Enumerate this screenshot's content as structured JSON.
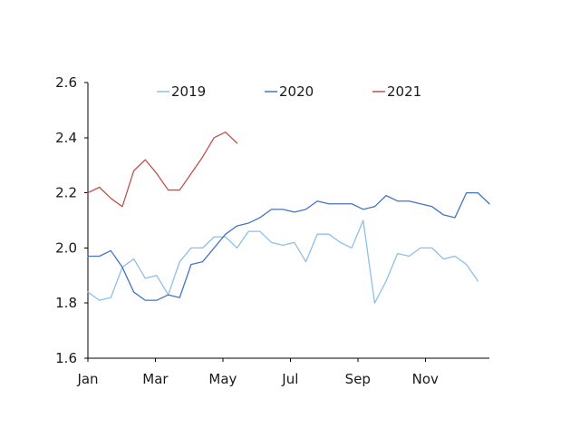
{
  "chart_data": {
    "type": "line",
    "title": "",
    "xlabel": "",
    "ylabel": "",
    "ylim": [
      1.6,
      2.6
    ],
    "yticks": [
      "1.6",
      "1.8",
      "2.0",
      "2.2",
      "2.4",
      "2.6"
    ],
    "x_tick_labels": [
      "Jan",
      "Mar",
      "May",
      "Jul",
      "Sep",
      "Nov"
    ],
    "x_tick_weeks": [
      0,
      10,
      20,
      30,
      40,
      50
    ],
    "x_range_weeks": [
      0,
      59.5
    ],
    "grid": false,
    "legend_position": "top",
    "series": [
      {
        "name": "2019",
        "color": "#8fbfe6",
        "values": [
          1.84,
          1.81,
          1.82,
          1.93,
          1.96,
          1.89,
          1.9,
          1.83,
          1.95,
          2.0,
          2.0,
          2.04,
          2.04,
          2.0,
          2.06,
          2.06,
          2.02,
          2.01,
          2.02,
          1.95,
          2.05,
          2.05,
          2.02,
          2.0,
          2.1,
          1.8,
          1.88,
          1.98,
          1.97,
          2.0,
          2.0,
          1.96,
          1.97,
          1.94,
          1.88
        ]
      },
      {
        "name": "2020",
        "color": "#4674c1",
        "values": [
          1.97,
          1.97,
          1.99,
          1.93,
          1.84,
          1.81,
          1.81,
          1.83,
          1.82,
          1.94,
          1.95,
          2.0,
          2.05,
          2.08,
          2.09,
          2.11,
          2.14,
          2.14,
          2.13,
          2.14,
          2.17,
          2.16,
          2.16,
          2.16,
          2.14,
          2.15,
          2.19,
          2.17,
          2.17,
          2.16,
          2.15,
          2.12,
          2.11,
          2.2,
          2.2,
          2.16
        ]
      },
      {
        "name": "2021",
        "color": "#c0504d",
        "values": [
          2.2,
          2.22,
          2.18,
          2.15,
          2.28,
          2.32,
          2.27,
          2.21,
          2.21,
          2.27,
          2.33,
          2.4,
          2.42,
          2.38
        ]
      }
    ]
  }
}
